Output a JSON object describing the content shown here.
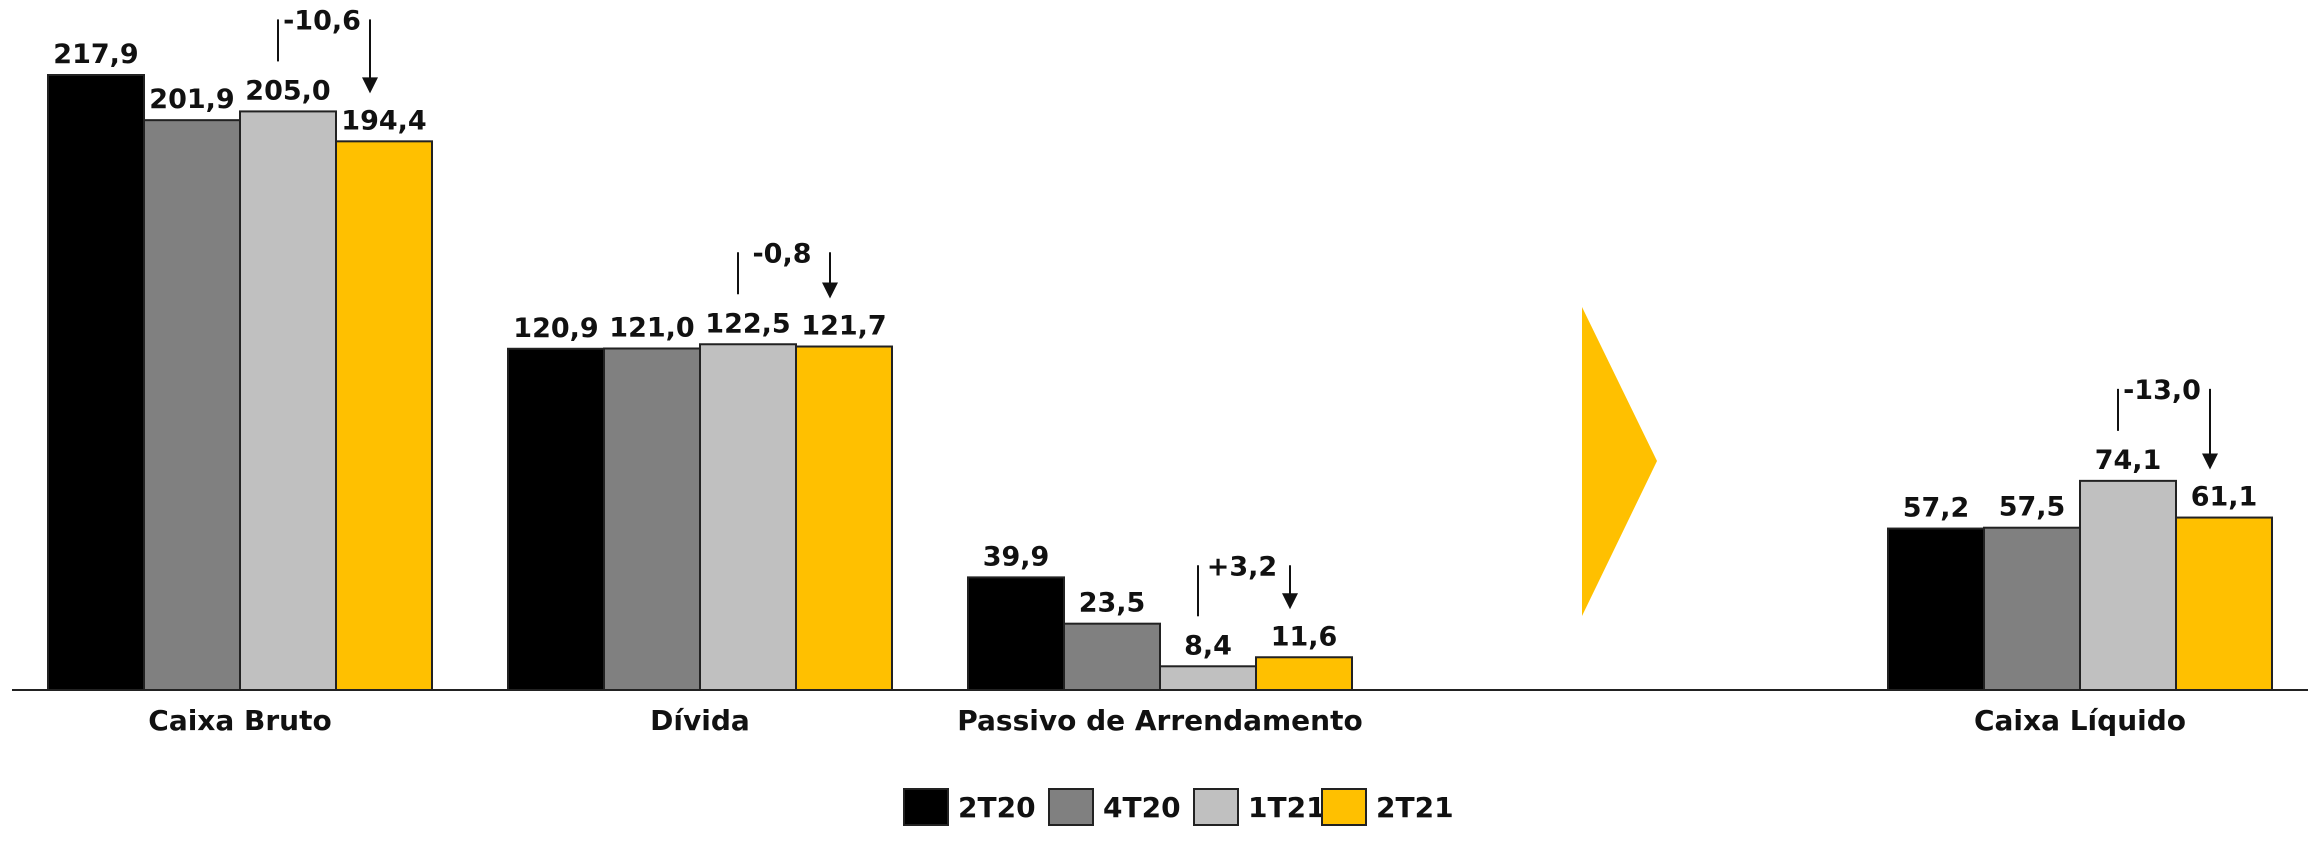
{
  "chart_data": {
    "type": "bar",
    "categories": [
      "Caixa Bruto",
      "Dívida",
      "Passivo de Arrendamento",
      "Caixa Líquido"
    ],
    "series": [
      {
        "name": "2T20",
        "color": "#000000",
        "values": [
          217.9,
          120.9,
          39.9,
          57.2
        ]
      },
      {
        "name": "4T20",
        "color": "#808080",
        "values": [
          201.9,
          121.0,
          23.5,
          57.5
        ]
      },
      {
        "name": "1T21",
        "color": "#c0c0c0",
        "values": [
          205.0,
          122.5,
          8.4,
          74.1
        ]
      },
      {
        "name": "2T21",
        "color": "#ffc000",
        "values": [
          194.4,
          121.7,
          11.6,
          61.1
        ]
      }
    ],
    "value_labels": [
      [
        "217,9",
        "201,9",
        "205,0",
        "194,4"
      ],
      [
        "120,9",
        "121,0",
        "122,5",
        "121,7"
      ],
      [
        "39,9",
        "23,5",
        "8,4",
        "11,6"
      ],
      [
        "57,2",
        "57,5",
        "74,1",
        "61,1"
      ]
    ],
    "variations": [
      "-10,6",
      "-0,8",
      "+3,2",
      "-13,0"
    ],
    "ylim": [
      0,
      217.9
    ],
    "legend_position": "bottom-center",
    "grid": false,
    "arrow_color": "#ffc000"
  }
}
